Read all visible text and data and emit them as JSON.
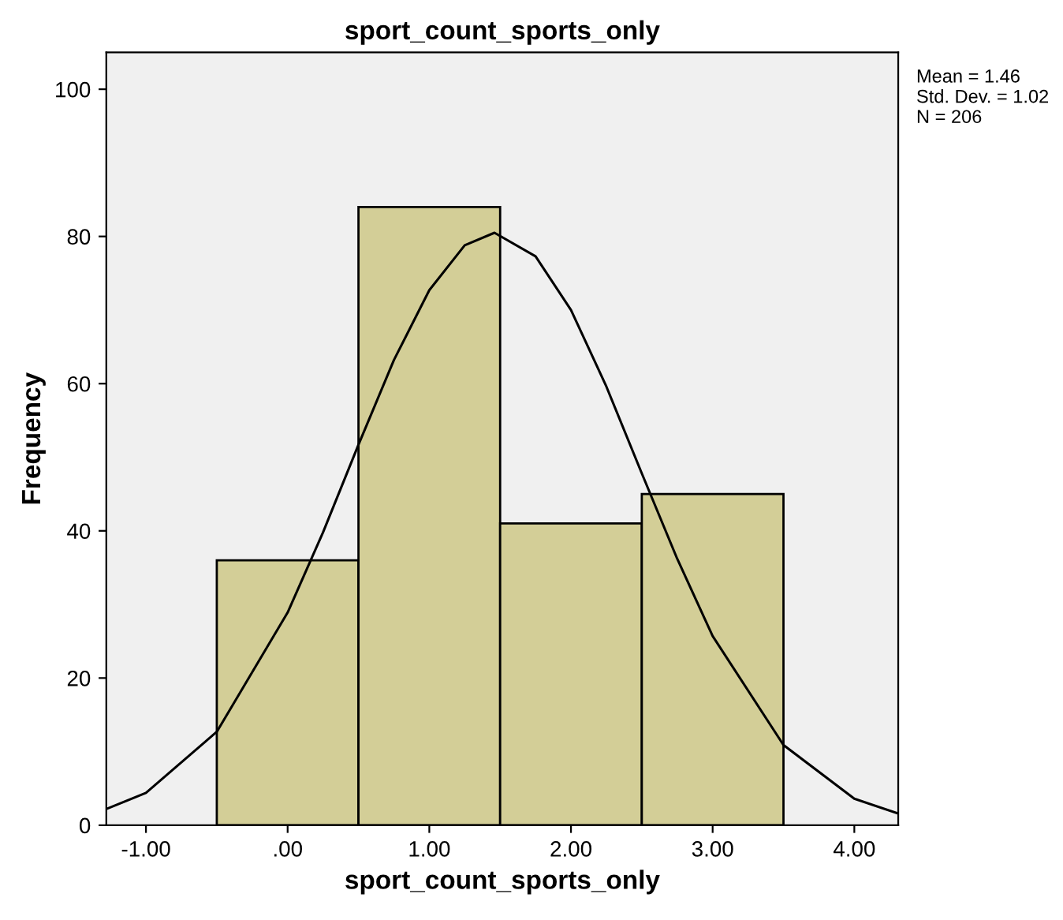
{
  "chart_data": {
    "type": "histogram",
    "title": "sport_count_sports_only",
    "xlabel": "sport_count_sports_only",
    "ylabel": "Frequency",
    "bins": [
      -0.5,
      0.5,
      1.5,
      2.5,
      3.5
    ],
    "series": [
      {
        "color": "#d3ce97",
        "values": [
          36,
          84,
          41,
          45
        ]
      },
      {
        "type": "line",
        "color": "#000000",
        "x": [
          -1.28,
          -1.0,
          -0.5,
          0,
          0.25,
          0.5,
          0.75,
          1.0,
          1.25,
          1.46,
          1.75,
          2.0,
          2.25,
          2.5,
          2.75,
          3.0,
          3.5,
          4.0,
          4.31
        ],
        "values": [
          2.2,
          4.4,
          12.7,
          28.9,
          39.8,
          51.7,
          63.2,
          72.7,
          78.8,
          80.5,
          77.3,
          70.0,
          59.6,
          47.8,
          36.2,
          25.7,
          10.9,
          3.6,
          1.6
        ]
      }
    ],
    "xlim": [
      -1.28,
      4.31
    ],
    "ylim": [
      0,
      105
    ],
    "xticks": [
      {
        "value": -1,
        "label": "-1.00"
      },
      {
        "value": 0,
        "label": ".00"
      },
      {
        "value": 1,
        "label": "1.00"
      },
      {
        "value": 2,
        "label": "2.00"
      },
      {
        "value": 3,
        "label": "3.00"
      },
      {
        "value": 4,
        "label": "4.00"
      }
    ],
    "yticks": [
      0,
      20,
      40,
      60,
      80,
      100
    ],
    "grid": false,
    "annotations": [
      "Mean = 1.46",
      "Std. Dev. = 1.02",
      "N = 206"
    ]
  }
}
